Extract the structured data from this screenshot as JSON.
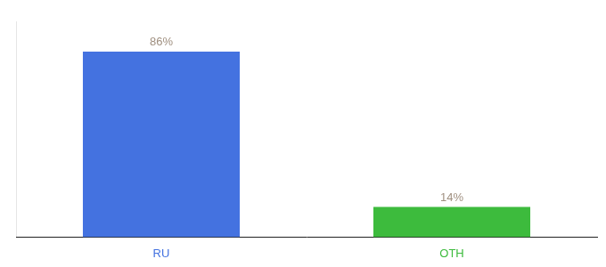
{
  "chart_data": {
    "type": "bar",
    "categories": [
      "RU",
      "OTH"
    ],
    "values": [
      86,
      14
    ],
    "value_labels": [
      "86%",
      "14%"
    ],
    "colors": [
      "#4472e0",
      "#3dbb3d"
    ],
    "ylim": [
      0,
      100
    ],
    "grid": false,
    "data_labels": true,
    "tick_labels": "x"
  }
}
